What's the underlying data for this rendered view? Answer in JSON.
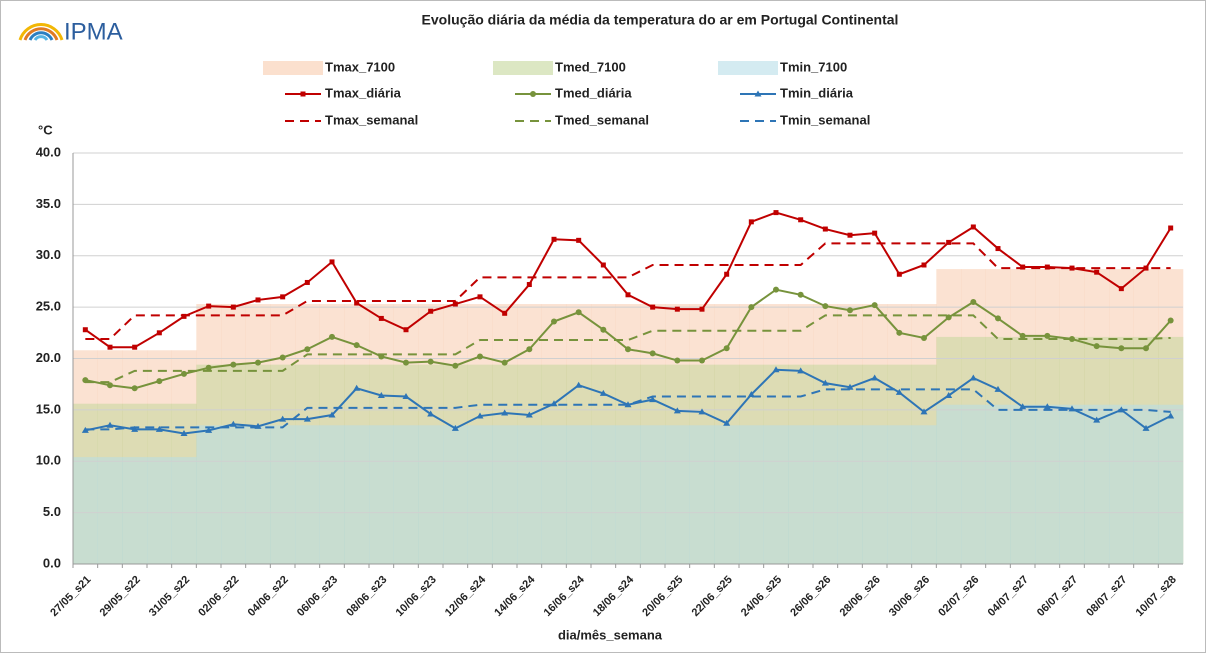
{
  "chart_data": {
    "type": "line",
    "title": "Evolução diária da média da temperatura do ar em Portugal Continental",
    "logo": "IPMA",
    "y_label": "°C",
    "x_label": "dia/mês_semana",
    "categories": [
      "27/05_s21",
      null,
      "29/05_s22",
      null,
      "31/05_s22",
      null,
      "02/06_s22",
      null,
      "04/06_s22",
      null,
      "06/06_s23",
      null,
      "08/06_s23",
      null,
      "10/06_s23",
      null,
      "12/06_s24",
      null,
      "14/06_s24",
      null,
      "16/06_s24",
      null,
      "18/06_s24",
      null,
      "20/06_s25",
      null,
      "22/06_s25",
      null,
      "24/06_s25",
      null,
      "26/06_s26",
      null,
      "28/06_s26",
      null,
      "30/06_s26",
      null,
      "02/07_s26",
      null,
      "04/07_s27",
      null,
      "06/07_s27",
      null,
      "08/07_s27",
      null,
      "10/07_s28"
    ],
    "ylim": [
      0,
      40
    ],
    "yticks": [
      {
        "value": 0,
        "label": "0.0"
      },
      {
        "value": 5,
        "label": "5.0"
      },
      {
        "value": 10,
        "label": "10.0"
      },
      {
        "value": 15,
        "label": "15.0"
      },
      {
        "value": 20,
        "label": "20.0"
      },
      {
        "value": 25,
        "label": "25.0"
      },
      {
        "value": 30,
        "label": "30.0"
      },
      {
        "value": 35,
        "label": "35.0"
      },
      {
        "value": 40,
        "label": "40.0"
      }
    ],
    "grid": true,
    "series": [
      {
        "name": "Tmax_7100",
        "style": "area",
        "color": "#f8cbad",
        "values": [
          20.8,
          20.8,
          20.8,
          20.8,
          20.8,
          25.3,
          25.3,
          25.3,
          25.3,
          25.3,
          25.3,
          25.3,
          25.3,
          25.3,
          25.3,
          25.3,
          25.3,
          25.3,
          25.3,
          25.3,
          25.3,
          25.3,
          25.3,
          25.3,
          25.3,
          25.3,
          25.3,
          25.3,
          25.3,
          25.3,
          25.3,
          25.3,
          25.3,
          25.3,
          25.3,
          28.7,
          28.7,
          28.7,
          28.7,
          28.7,
          28.7,
          28.7,
          28.7,
          28.7,
          28.7
        ]
      },
      {
        "name": "Tmed_7100",
        "style": "area",
        "color": "#c4d79b",
        "values": [
          15.6,
          15.6,
          15.6,
          15.6,
          15.6,
          19.4,
          19.4,
          19.4,
          19.4,
          19.4,
          19.4,
          19.4,
          19.4,
          19.4,
          19.4,
          19.4,
          19.4,
          19.4,
          19.4,
          19.4,
          19.4,
          19.4,
          19.4,
          19.4,
          19.4,
          19.4,
          19.4,
          19.4,
          19.4,
          19.4,
          19.4,
          19.4,
          19.4,
          19.4,
          19.4,
          22.1,
          22.1,
          22.1,
          22.1,
          22.1,
          22.1,
          22.1,
          22.1,
          22.1,
          22.1
        ]
      },
      {
        "name": "Tmin_7100",
        "style": "area",
        "color": "#b7dee8",
        "values": [
          10.4,
          10.4,
          10.4,
          10.4,
          10.4,
          13.5,
          13.5,
          13.5,
          13.5,
          13.5,
          13.5,
          13.5,
          13.5,
          13.5,
          13.5,
          13.5,
          13.5,
          13.5,
          13.5,
          13.5,
          13.5,
          13.5,
          13.5,
          13.5,
          13.5,
          13.5,
          13.5,
          13.5,
          13.5,
          13.5,
          13.5,
          13.5,
          13.5,
          13.5,
          13.5,
          15.5,
          15.5,
          15.5,
          15.5,
          15.5,
          15.5,
          15.5,
          15.5,
          15.5,
          15.5
        ]
      },
      {
        "name": "Tmax_diária",
        "style": "line",
        "marker": "square",
        "color": "#c00000",
        "values": [
          22.8,
          21.1,
          21.1,
          22.5,
          24.1,
          25.1,
          25.0,
          25.7,
          26.0,
          27.4,
          29.4,
          25.4,
          23.9,
          22.8,
          24.6,
          25.3,
          26.0,
          24.4,
          27.2,
          31.6,
          31.5,
          29.1,
          26.2,
          25.0,
          24.8,
          24.8,
          28.2,
          33.3,
          34.2,
          33.5,
          32.6,
          32.0,
          32.2,
          28.2,
          29.1,
          31.3,
          32.8,
          30.7,
          28.9,
          28.9,
          28.8,
          28.4,
          26.8,
          28.8,
          32.7
        ]
      },
      {
        "name": "Tmed_diária",
        "style": "line",
        "marker": "circle",
        "color": "#77933c",
        "values": [
          17.9,
          17.4,
          17.1,
          17.8,
          18.5,
          19.1,
          19.4,
          19.6,
          20.1,
          20.9,
          22.1,
          21.3,
          20.2,
          19.6,
          19.7,
          19.3,
          20.2,
          19.6,
          20.9,
          23.6,
          24.5,
          22.8,
          20.9,
          20.5,
          19.8,
          19.8,
          21.0,
          25.0,
          26.7,
          26.2,
          25.1,
          24.7,
          25.2,
          22.5,
          22.0,
          24.0,
          25.5,
          23.9,
          22.2,
          22.2,
          21.9,
          21.2,
          21.0,
          21.0,
          23.7
        ]
      },
      {
        "name": "Tmin_diária",
        "style": "line",
        "marker": "triangle",
        "color": "#2e75b6",
        "values": [
          13.0,
          13.5,
          13.1,
          13.1,
          12.7,
          13.0,
          13.6,
          13.4,
          14.1,
          14.1,
          14.5,
          17.1,
          16.4,
          16.3,
          14.6,
          13.2,
          14.4,
          14.7,
          14.5,
          15.6,
          17.4,
          16.6,
          15.5,
          16.0,
          14.9,
          14.8,
          13.7,
          16.5,
          18.9,
          18.8,
          17.6,
          17.2,
          18.1,
          16.7,
          14.8,
          16.4,
          18.1,
          17.0,
          15.3,
          15.3,
          15.1,
          14.0,
          15.0,
          13.2,
          14.4
        ]
      },
      {
        "name": "Tmax_semanal",
        "style": "dashed",
        "color": "#c00000",
        "values": [
          21.9,
          21.9,
          24.2,
          24.2,
          24.2,
          24.2,
          24.2,
          24.2,
          24.2,
          25.6,
          25.6,
          25.6,
          25.6,
          25.6,
          25.6,
          25.6,
          27.9,
          27.9,
          27.9,
          27.9,
          27.9,
          27.9,
          27.9,
          29.1,
          29.1,
          29.1,
          29.1,
          29.1,
          29.1,
          29.1,
          31.2,
          31.2,
          31.2,
          31.2,
          31.2,
          31.2,
          31.2,
          28.8,
          28.8,
          28.8,
          28.8,
          28.8,
          28.8,
          28.8,
          28.8
        ]
      },
      {
        "name": "Tmed_semanal",
        "style": "dashed",
        "color": "#77933c",
        "values": [
          17.7,
          17.7,
          18.8,
          18.8,
          18.8,
          18.8,
          18.8,
          18.8,
          18.8,
          20.4,
          20.4,
          20.4,
          20.4,
          20.4,
          20.4,
          20.4,
          21.8,
          21.8,
          21.8,
          21.8,
          21.8,
          21.8,
          21.8,
          22.7,
          22.7,
          22.7,
          22.7,
          22.7,
          22.7,
          22.7,
          24.2,
          24.2,
          24.2,
          24.2,
          24.2,
          24.2,
          24.2,
          21.9,
          21.9,
          21.9,
          21.9,
          21.9,
          21.9,
          21.9,
          22.0
        ]
      },
      {
        "name": "Tmin_semanal",
        "style": "dashed",
        "color": "#2e75b6",
        "values": [
          13.1,
          13.1,
          13.3,
          13.3,
          13.3,
          13.3,
          13.3,
          13.3,
          13.3,
          15.2,
          15.2,
          15.2,
          15.2,
          15.2,
          15.2,
          15.2,
          15.5,
          15.5,
          15.5,
          15.5,
          15.5,
          15.5,
          15.5,
          16.3,
          16.3,
          16.3,
          16.3,
          16.3,
          16.3,
          16.3,
          17.0,
          17.0,
          17.0,
          17.0,
          17.0,
          17.0,
          17.0,
          15.0,
          15.0,
          15.0,
          15.0,
          15.0,
          15.0,
          15.0,
          14.8
        ]
      }
    ]
  }
}
